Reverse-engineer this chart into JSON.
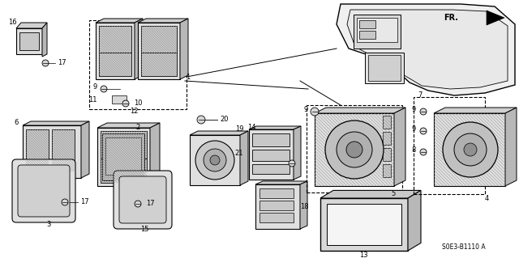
{
  "bg_color": "#ffffff",
  "line_color": "#000000",
  "fig_width": 6.4,
  "fig_height": 3.19,
  "dpi": 100,
  "part_code": "S0E3-B1110 A",
  "direction_label": "FR."
}
